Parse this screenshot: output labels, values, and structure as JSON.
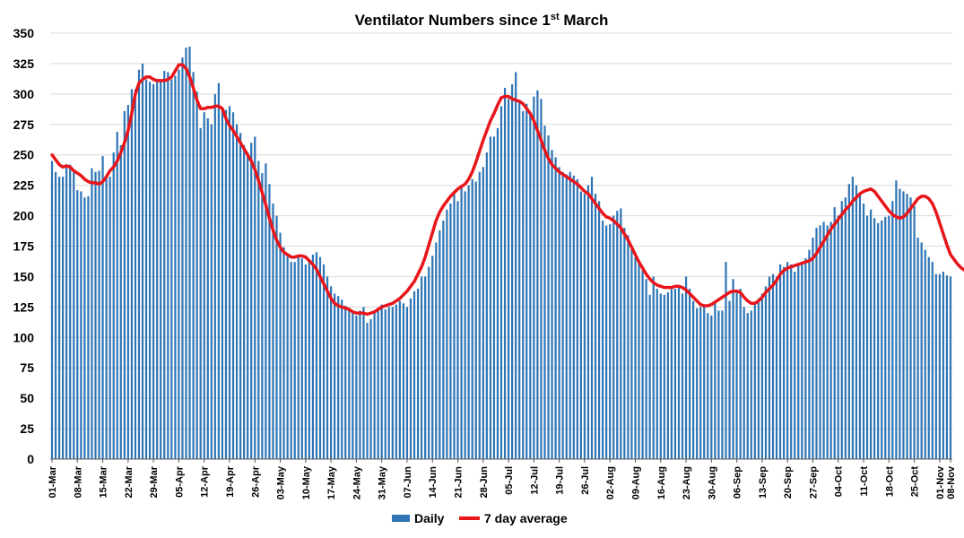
{
  "chart_data": {
    "type": "bar",
    "title": "Ventilator Numbers since 1",
    "title_sup": "st",
    "title_rest": " March",
    "xlabel": "",
    "ylabel": "",
    "ylim": [
      0,
      350
    ],
    "yticks": [
      0,
      25,
      50,
      75,
      100,
      125,
      150,
      175,
      200,
      225,
      250,
      275,
      300,
      325,
      350
    ],
    "grid": "horizontal",
    "legend_position": "bottom-center",
    "colors": {
      "daily": "#2E75B6",
      "average": "#E8161B",
      "grid": "#d9d9d9"
    },
    "tick_labels": [
      "01-Mar",
      "08-Mar",
      "15-Mar",
      "22-Mar",
      "29-Mar",
      "05-Apr",
      "12-Apr",
      "19-Apr",
      "26-Apr",
      "03-May",
      "10-May",
      "17-May",
      "24-May",
      "31-May",
      "07-Jun",
      "14-Jun",
      "21-Jun",
      "28-Jun",
      "05-Jul",
      "12-Jul",
      "19-Jul",
      "26-Jul",
      "02-Aug",
      "09-Aug",
      "16-Aug",
      "23-Aug",
      "30-Aug",
      "06-Sep",
      "13-Sep",
      "20-Sep",
      "27-Sep",
      "04-Oct",
      "11-Oct",
      "18-Oct",
      "25-Oct",
      "01-Nov",
      "08-Nov"
    ],
    "series": [
      {
        "name": "Daily",
        "type": "bar",
        "values": [
          245,
          236,
          232,
          232,
          240,
          242,
          237,
          221,
          220,
          215,
          216,
          239,
          236,
          237,
          249,
          232,
          232,
          252,
          269,
          258,
          286,
          291,
          304,
          304,
          320,
          325,
          312,
          310,
          308,
          312,
          312,
          319,
          318,
          312,
          315,
          320,
          330,
          338,
          339,
          318,
          302,
          272,
          285,
          280,
          275,
          300,
          309,
          287,
          287,
          290,
          285,
          275,
          268,
          258,
          252,
          260,
          265,
          245,
          235,
          243,
          226,
          210,
          200,
          186,
          174,
          168,
          162,
          162,
          168,
          165,
          160,
          162,
          168,
          170,
          166,
          160,
          150,
          142,
          136,
          134,
          131,
          126,
          122,
          120,
          118,
          122,
          125,
          112,
          115,
          120,
          124,
          127,
          123,
          125,
          125,
          127,
          130,
          128,
          125,
          132,
          138,
          140,
          150,
          150,
          158,
          167,
          178,
          188,
          196,
          205,
          210,
          218,
          212,
          225,
          220,
          225,
          230,
          228,
          236,
          240,
          252,
          265,
          265,
          272,
          290,
          305,
          296,
          308,
          318,
          293,
          286,
          292,
          285,
          298,
          303,
          296,
          274,
          266,
          254,
          248,
          240,
          236,
          234,
          236,
          233,
          230,
          220,
          218,
          225,
          232,
          218,
          212,
          196,
          192,
          193,
          200,
          204,
          206,
          190,
          184,
          172,
          166,
          163,
          155,
          148,
          135,
          150,
          140,
          136,
          135,
          137,
          142,
          140,
          142,
          136,
          150,
          140,
          130,
          124,
          125,
          127,
          120,
          118,
          128,
          122,
          122,
          162,
          130,
          148,
          138,
          140,
          125,
          120,
          122,
          129,
          132,
          136,
          142,
          150,
          152,
          150,
          160,
          158,
          162,
          160,
          154,
          160,
          162,
          165,
          172,
          182,
          190,
          192,
          195,
          192,
          195,
          207,
          200,
          212,
          215,
          226,
          232,
          225,
          218,
          210,
          200,
          205,
          198,
          194,
          196,
          199,
          200,
          212,
          229,
          222,
          220,
          218,
          215,
          208,
          182,
          178,
          172,
          166,
          162,
          152,
          152,
          154,
          151,
          150
        ]
      },
      {
        "name": "7 day average",
        "type": "line",
        "values": [
          250,
          246,
          242,
          240,
          241,
          240,
          237,
          235,
          233,
          230,
          228,
          227,
          227,
          226,
          228,
          232,
          237,
          240,
          245,
          252,
          260,
          270,
          284,
          300,
          309,
          312,
          314,
          314,
          312,
          311,
          311,
          311,
          312,
          314,
          319,
          324,
          324,
          321,
          314,
          305,
          295,
          288,
          288,
          289,
          289,
          290,
          290,
          288,
          280,
          274,
          270,
          265,
          260,
          255,
          250,
          245,
          238,
          229,
          219,
          209,
          198,
          188,
          180,
          174,
          170,
          168,
          166,
          166,
          167,
          167,
          166,
          163,
          160,
          156,
          150,
          144,
          138,
          132,
          128,
          126,
          125,
          124,
          123,
          121,
          120,
          120,
          120,
          119,
          120,
          121,
          123,
          125,
          126,
          127,
          128,
          130,
          132,
          135,
          138,
          142,
          146,
          152,
          158,
          166,
          176,
          186,
          196,
          203,
          208,
          212,
          216,
          219,
          222,
          224,
          226,
          230,
          236,
          244,
          253,
          262,
          270,
          278,
          284,
          291,
          297,
          298,
          298,
          296,
          295,
          294,
          292,
          288,
          284,
          278,
          270,
          262,
          254,
          247,
          242,
          239,
          236,
          234,
          232,
          230,
          228,
          226,
          223,
          220,
          218,
          214,
          210,
          206,
          202,
          199,
          198,
          196,
          193,
          190,
          185,
          180,
          174,
          168,
          162,
          157,
          152,
          148,
          145,
          143,
          142,
          141,
          141,
          141,
          142,
          142,
          141,
          139,
          136,
          133,
          130,
          127,
          126,
          126,
          127,
          129,
          131,
          133,
          135,
          137,
          138,
          138,
          137,
          133,
          130,
          128,
          128,
          130,
          133,
          137,
          140,
          143,
          147,
          152,
          155,
          157,
          158,
          159,
          160,
          161,
          162,
          163,
          165,
          169,
          174,
          179,
          184,
          189,
          193,
          197,
          201,
          205,
          208,
          212,
          215,
          218,
          220,
          221,
          222,
          220,
          216,
          212,
          208,
          204,
          201,
          199,
          198,
          199,
          202,
          206,
          210,
          214,
          216,
          216,
          214,
          210,
          203,
          194,
          185,
          176,
          168,
          164,
          160,
          157,
          155
        ]
      }
    ]
  }
}
